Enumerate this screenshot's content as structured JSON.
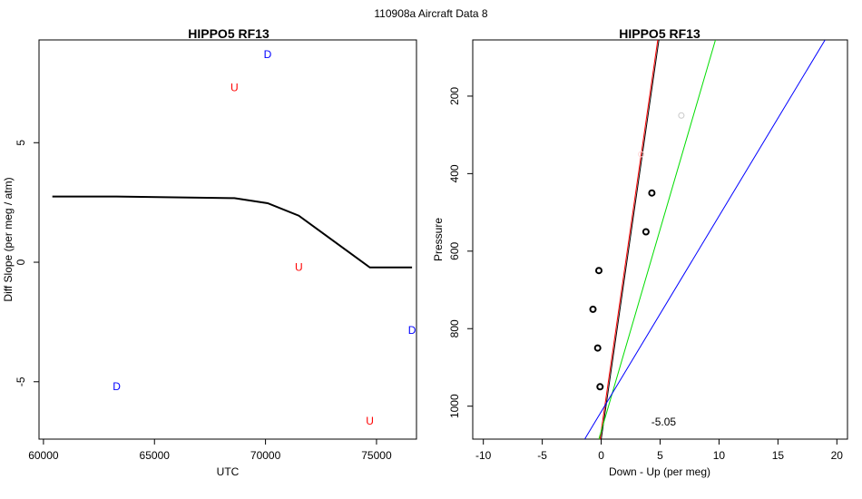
{
  "page": {
    "suptitle": "110908a   Aircraft Data 8"
  },
  "chart_data": [
    {
      "type": "line",
      "title": "HIPPO5 RF13",
      "xlabel": "UTC",
      "ylabel": "Diff Slope (per meg / atm)",
      "xlim": [
        59800,
        76800
      ],
      "ylim": [
        -7.4,
        9.3
      ],
      "xticks": [
        60000,
        65000,
        70000,
        75000
      ],
      "yticks": [
        -5,
        0,
        5
      ],
      "series": [
        {
          "line": true,
          "color": "#000000",
          "x": [
            60400,
            63300,
            68600,
            70100,
            71500,
            74700,
            76600
          ],
          "y": [
            2.75,
            2.75,
            2.68,
            2.47,
            1.95,
            -0.22,
            -0.22
          ]
        }
      ],
      "labels": [
        {
          "text": "D",
          "x": 70100,
          "y": 8.7,
          "color": "#0000ff"
        },
        {
          "text": "U",
          "x": 68600,
          "y": 7.3,
          "color": "#ff0000"
        },
        {
          "text": "U",
          "x": 71500,
          "y": -0.2,
          "color": "#ff0000"
        },
        {
          "text": "D",
          "x": 76600,
          "y": -2.85,
          "color": "#0000ff"
        },
        {
          "text": "D",
          "x": 63300,
          "y": -5.2,
          "color": "#0000ff"
        },
        {
          "text": "U",
          "x": 74700,
          "y": -6.65,
          "color": "#ff0000"
        }
      ]
    },
    {
      "type": "scatter",
      "title": "HIPPO5 RF13",
      "xlabel": "Down - Up (per meg)",
      "ylabel": "Pressure",
      "xlim": [
        -10.9,
        20.9
      ],
      "ylim": [
        1085,
        55
      ],
      "xticks": [
        -10,
        -5,
        0,
        5,
        10,
        15,
        20
      ],
      "yticks": [
        200,
        400,
        600,
        800,
        1000
      ],
      "points": [
        {
          "x": 4.3,
          "y": 450,
          "color": "#000000"
        },
        {
          "x": 3.8,
          "y": 550,
          "color": "#000000"
        },
        {
          "x": -0.2,
          "y": 650,
          "color": "#000000"
        },
        {
          "x": -0.7,
          "y": 750,
          "color": "#000000"
        },
        {
          "x": -0.3,
          "y": 850,
          "color": "#000000"
        },
        {
          "x": -0.1,
          "y": 950,
          "color": "#000000"
        },
        {
          "x": 6.8,
          "y": 250,
          "color": "#c8c8c8"
        },
        {
          "x": 3.4,
          "y": 350,
          "color": "#ffd2d2"
        }
      ],
      "lines": [
        {
          "color": "#000000",
          "x1": 0,
          "y1": 1085,
          "x2": 4.9,
          "y2": 55
        },
        {
          "color": "#ff0000",
          "x1": -0.1,
          "y1": 1085,
          "x2": 4.8,
          "y2": 55
        },
        {
          "color": "#00dd00",
          "x1": -0.2,
          "y1": 1085,
          "x2": 9.7,
          "y2": 55
        },
        {
          "color": "#0000ff",
          "x1": -1.4,
          "y1": 1085,
          "x2": 19,
          "y2": 55
        }
      ],
      "annotation": {
        "text": "-5.05",
        "x": 5.3,
        "y": 1040
      }
    }
  ]
}
